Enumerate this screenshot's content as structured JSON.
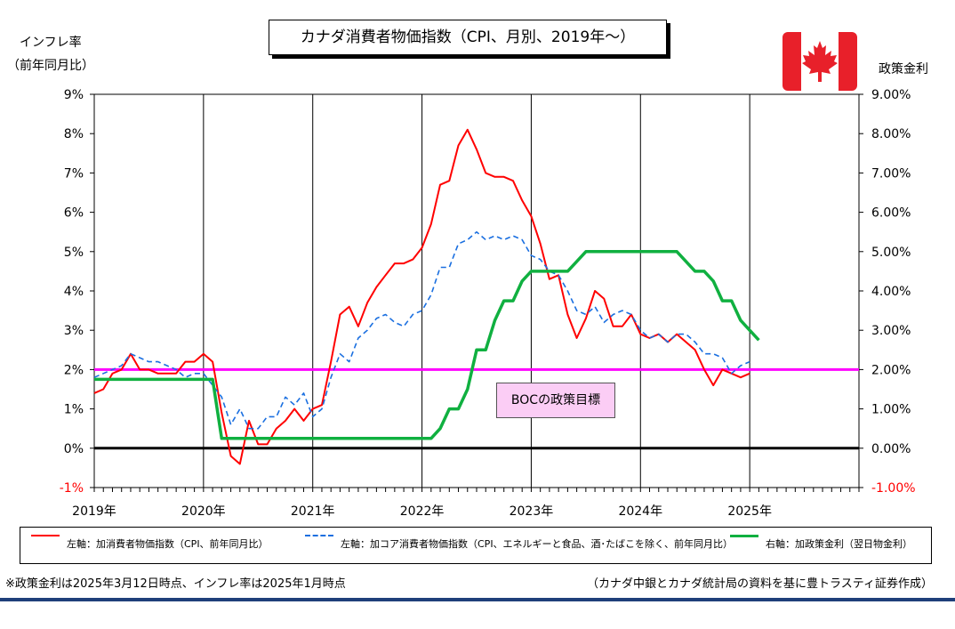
{
  "header": {
    "title": "カナダ消費者物価指数（CPI、月別、2019年～）",
    "left_axis_title_line1": "インフレ率",
    "left_axis_title_line2": "（前年同月比）",
    "right_axis_title": "政策金利"
  },
  "annotation": {
    "label": "BOCの政策目標"
  },
  "legend": {
    "items": [
      {
        "label": "左軸：加消費者物価指数（CPI、前年同月比）",
        "color": "#ff0000",
        "style": "solid"
      },
      {
        "label": "左軸：加コア消費者物価指数（CPI、エネルギーと食品、酒･たばこを除く、前年同月比）",
        "color": "#1a6fe0",
        "style": "dashed"
      },
      {
        "label": "右軸：加政策金利（翌日物金利）",
        "color": "#10b040",
        "style": "solid"
      }
    ]
  },
  "footer": {
    "note": "※政策金利は2025年3月12日時点、インフレ率は2025年1月時点",
    "source": "（カナダ中銀とカナダ統計局の資料を基に豊トラスティ証券作成）"
  },
  "colors": {
    "cpi": "#ff0000",
    "core": "#1a6fe0",
    "rate": "#10b040",
    "target": "#ff00ff",
    "zero": "#000000",
    "accent_bar": "#1f3f7a"
  },
  "chart_data": {
    "type": "line",
    "title": "カナダ消費者物価指数（CPI、月別、2019年～）",
    "x_start": "2019-01",
    "x_end": "2025-12",
    "x_tick_labels": [
      "2019年",
      "2020年",
      "2021年",
      "2022年",
      "2023年",
      "2024年",
      "2025年"
    ],
    "y_left": {
      "label": "インフレ率（前年同月比）",
      "min": -1,
      "max": 9,
      "step": 1,
      "tick_labels": [
        "-1%",
        "0%",
        "1%",
        "2%",
        "3%",
        "4%",
        "5%",
        "6%",
        "7%",
        "8%",
        "9%"
      ]
    },
    "y_right": {
      "label": "政策金利",
      "min": -1,
      "max": 9,
      "step": 1,
      "tick_labels": [
        "-1.00%",
        "0.00%",
        "1.00%",
        "2.00%",
        "3.00%",
        "4.00%",
        "5.00%",
        "6.00%",
        "7.00%",
        "8.00%",
        "9.00%"
      ]
    },
    "grid": "vertical-year",
    "target_line": 2.0,
    "zero_line": 0.0,
    "series": [
      {
        "name": "左軸：加消費者物価指数（CPI、前年同月比）",
        "axis": "left",
        "start": "2019-01",
        "values": [
          1.4,
          1.5,
          1.9,
          2.0,
          2.4,
          2.0,
          2.0,
          1.9,
          1.9,
          1.9,
          2.2,
          2.2,
          2.4,
          2.2,
          0.9,
          -0.2,
          -0.4,
          0.7,
          0.1,
          0.1,
          0.5,
          0.7,
          1.0,
          0.7,
          1.0,
          1.1,
          2.2,
          3.4,
          3.6,
          3.1,
          3.7,
          4.1,
          4.4,
          4.7,
          4.7,
          4.8,
          5.1,
          5.7,
          6.7,
          6.8,
          7.7,
          8.1,
          7.6,
          7.0,
          6.9,
          6.9,
          6.8,
          6.3,
          5.9,
          5.2,
          4.3,
          4.4,
          3.4,
          2.8,
          3.3,
          4.0,
          3.8,
          3.1,
          3.1,
          3.4,
          2.9,
          2.8,
          2.9,
          2.7,
          2.9,
          2.7,
          2.5,
          2.0,
          1.6,
          2.0,
          1.9,
          1.8,
          1.9
        ]
      },
      {
        "name": "左軸：加コア消費者物価指数（CPI、エネルギーと食品、酒･たばこを除く、前年同月比）",
        "axis": "left",
        "start": "2019-01",
        "values": [
          1.8,
          1.9,
          2.0,
          2.1,
          2.4,
          2.3,
          2.2,
          2.2,
          2.1,
          2.0,
          1.8,
          1.9,
          1.9,
          1.6,
          1.3,
          0.6,
          1.0,
          0.5,
          0.5,
          0.8,
          0.8,
          1.3,
          1.1,
          1.4,
          0.8,
          1.0,
          1.8,
          2.4,
          2.2,
          2.8,
          3.0,
          3.3,
          3.4,
          3.2,
          3.1,
          3.4,
          3.5,
          3.9,
          4.6,
          4.6,
          5.2,
          5.3,
          5.5,
          5.3,
          5.4,
          5.3,
          5.4,
          5.3,
          4.9,
          4.8,
          4.5,
          4.4,
          4.0,
          3.5,
          3.4,
          3.6,
          3.2,
          3.4,
          3.5,
          3.4,
          3.0,
          2.8,
          2.9,
          2.7,
          2.9,
          2.9,
          2.7,
          2.4,
          2.4,
          2.3,
          1.9,
          2.1,
          2.2
        ]
      },
      {
        "name": "右軸：加政策金利（翌日物金利）",
        "axis": "right",
        "start": "2019-01",
        "values": [
          1.75,
          1.75,
          1.75,
          1.75,
          1.75,
          1.75,
          1.75,
          1.75,
          1.75,
          1.75,
          1.75,
          1.75,
          1.75,
          1.75,
          0.25,
          0.25,
          0.25,
          0.25,
          0.25,
          0.25,
          0.25,
          0.25,
          0.25,
          0.25,
          0.25,
          0.25,
          0.25,
          0.25,
          0.25,
          0.25,
          0.25,
          0.25,
          0.25,
          0.25,
          0.25,
          0.25,
          0.25,
          0.25,
          0.5,
          1.0,
          1.0,
          1.5,
          2.5,
          2.5,
          3.25,
          3.75,
          3.75,
          4.25,
          4.5,
          4.5,
          4.5,
          4.5,
          4.5,
          4.75,
          5.0,
          5.0,
          5.0,
          5.0,
          5.0,
          5.0,
          5.0,
          5.0,
          5.0,
          5.0,
          5.0,
          4.75,
          4.5,
          4.5,
          4.25,
          3.75,
          3.75,
          3.25,
          3.0,
          2.75
        ]
      }
    ]
  }
}
